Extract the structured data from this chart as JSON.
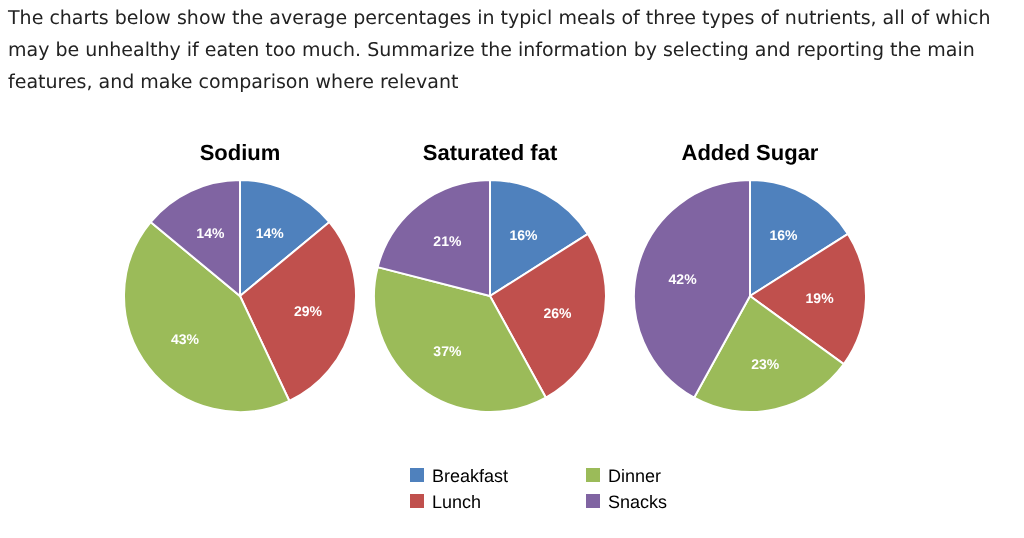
{
  "chart_data": [
    {
      "type": "pie",
      "title": "Sodium",
      "annotations": [
        "The charts below show the average percentages in typicl meals of three types of nutrients, all of which may be unhealthy if eaten too much. Summarize the information by selecting and reporting the main features, and make comparison where relevant"
      ],
      "categories": [
        null,
        null,
        null,
        null
      ],
      "values": [
        14,
        29,
        43,
        14
      ],
      "value_labels": [
        "14%",
        "29%",
        "43%",
        "14%"
      ],
      "colors": [
        "#4f81bd",
        "#c0504d",
        "#9bbb59",
        "#8064a2"
      ]
    },
    {
      "type": "pie",
      "title": "Saturated fat",
      "categories": [
        "Breakfast",
        "Lunch",
        "Dinner",
        "Snacks"
      ],
      "values": [
        16,
        26,
        37,
        21
      ],
      "value_labels": [
        "16%",
        "26%",
        "37%",
        "21%"
      ],
      "colors": [
        "#4f81bd",
        "#c0504d",
        "#9bbb59",
        "#8064a2"
      ],
      "legend": "bottom"
    },
    {
      "type": "pie",
      "title": "Added Sugar",
      "categories": [
        null,
        null,
        null,
        null
      ],
      "values": [
        16,
        19,
        23,
        42
      ],
      "value_labels": [
        "16%",
        "19%",
        "23%",
        "42%"
      ],
      "colors": [
        "#4f81bd",
        "#c0504d",
        "#9bbb59",
        "#8064a2"
      ]
    }
  ]
}
